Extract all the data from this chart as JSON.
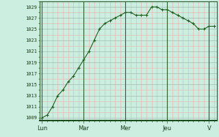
{
  "background_color": "#cceee0",
  "line_color": "#1a5c1a",
  "marker_color": "#1a5c1a",
  "grid_color_minor_v": "#e8b0b0",
  "grid_color_minor_h": "#e8b0b0",
  "grid_color_major": "#a0b8b0",
  "x_day_labels": [
    "Lun",
    "Mar",
    "Mer",
    "Jeu",
    "V"
  ],
  "x_day_positions": [
    0,
    8,
    16,
    24,
    32
  ],
  "ylim": [
    1008.5,
    1030.0
  ],
  "yticks": [
    1009,
    1011,
    1013,
    1015,
    1017,
    1019,
    1021,
    1023,
    1025,
    1027,
    1029
  ],
  "values": [
    1009,
    1009.5,
    1011,
    1013,
    1014,
    1015.5,
    1016.5,
    1018,
    1019.5,
    1021,
    1023,
    1025,
    1026,
    1026.5,
    1027,
    1027.5,
    1028,
    1028,
    1027.5,
    1027.5,
    1027.5,
    1029,
    1029,
    1028.5,
    1028.5,
    1028,
    1027.5,
    1027,
    1026.5,
    1026,
    1025,
    1025,
    1025.5,
    1025.5
  ],
  "n_points": 34,
  "ylabel_fontsize": 5.0,
  "xlabel_fontsize": 6.0
}
